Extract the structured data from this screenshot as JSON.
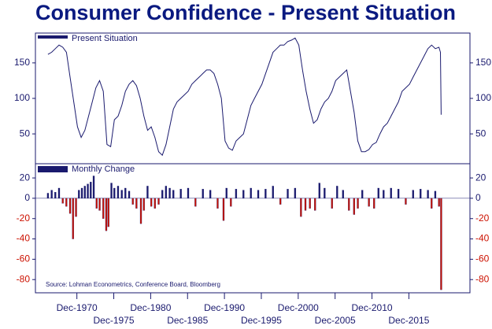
{
  "chart_data": [
    {
      "type": "line",
      "title": "Consumer Confidence - Present Situation",
      "series": [
        {
          "name": "Present Situation",
          "color": "#1a1a6e",
          "x": [
            1967.0,
            1967.5,
            1968.0,
            1968.5,
            1969.0,
            1969.5,
            1970.0,
            1970.5,
            1971.0,
            1971.5,
            1972.0,
            1972.5,
            1973.0,
            1973.5,
            1974.0,
            1974.5,
            1975.0,
            1975.5,
            1976.0,
            1976.5,
            1977.0,
            1977.5,
            1978.0,
            1978.5,
            1979.0,
            1979.5,
            1980.0,
            1980.5,
            1981.0,
            1981.5,
            1982.0,
            1982.5,
            1983.0,
            1983.5,
            1984.0,
            1984.5,
            1985.0,
            1985.5,
            1986.0,
            1986.5,
            1987.0,
            1987.5,
            1988.0,
            1988.5,
            1989.0,
            1989.5,
            1990.0,
            1990.5,
            1991.0,
            1991.5,
            1992.0,
            1992.5,
            1993.0,
            1993.5,
            1994.0,
            1994.5,
            1995.0,
            1995.5,
            1996.0,
            1996.5,
            1997.0,
            1997.5,
            1998.0,
            1998.5,
            1999.0,
            1999.5,
            2000.0,
            2000.5,
            2001.0,
            2001.5,
            2002.0,
            2002.5,
            2003.0,
            2003.5,
            2004.0,
            2004.5,
            2005.0,
            2005.5,
            2006.0,
            2006.5,
            2007.0,
            2007.5,
            2008.0,
            2008.5,
            2009.0,
            2009.5,
            2010.0,
            2010.5,
            2011.0,
            2011.5,
            2012.0,
            2012.5,
            2013.0,
            2013.5,
            2014.0,
            2014.5,
            2015.0,
            2015.5,
            2016.0,
            2016.5,
            2017.0,
            2017.5,
            2018.0,
            2018.5,
            2019.0,
            2019.5,
            2020.0,
            2020.2,
            2020.3
          ],
          "values": [
            162,
            165,
            170,
            175,
            172,
            165,
            130,
            95,
            60,
            45,
            55,
            75,
            95,
            115,
            125,
            110,
            35,
            32,
            70,
            75,
            90,
            110,
            120,
            125,
            118,
            100,
            75,
            55,
            60,
            45,
            25,
            20,
            35,
            60,
            85,
            95,
            100,
            105,
            110,
            120,
            125,
            130,
            135,
            140,
            140,
            135,
            120,
            100,
            40,
            30,
            27,
            40,
            45,
            50,
            70,
            90,
            100,
            110,
            120,
            135,
            150,
            165,
            170,
            175,
            175,
            180,
            182,
            185,
            175,
            140,
            110,
            85,
            65,
            70,
            85,
            95,
            100,
            110,
            125,
            130,
            135,
            140,
            110,
            80,
            40,
            25,
            25,
            28,
            35,
            38,
            50,
            60,
            65,
            75,
            85,
            95,
            110,
            115,
            120,
            130,
            140,
            150,
            160,
            170,
            175,
            170,
            172,
            165,
            77
          ]
        }
      ],
      "ylim": [
        8,
        192
      ],
      "yticks": [
        50,
        100,
        150
      ],
      "xlim": [
        1965.3,
        2024.2
      ]
    },
    {
      "type": "bar",
      "note": "Source: Lohman Econometrics, Conference Board, Bloomberg",
      "series": [
        {
          "name": "Monthly Change",
          "color": "#1a1a6e",
          "negative_color": "#cc1100",
          "x": [
            1967.0,
            1967.5,
            1968.0,
            1968.5,
            1969.0,
            1969.5,
            1970.0,
            1970.4,
            1970.8,
            1971.2,
            1971.6,
            1972.0,
            1972.4,
            1972.8,
            1973.2,
            1973.6,
            1974.0,
            1974.5,
            1974.9,
            1975.2,
            1975.6,
            1976.0,
            1976.5,
            1977.0,
            1977.5,
            1978.0,
            1978.5,
            1979.0,
            1979.6,
            1980.0,
            1980.5,
            1981.0,
            1981.5,
            1982.0,
            1982.5,
            1983.0,
            1983.5,
            1984.0,
            1985.0,
            1986.0,
            1987.0,
            1988.0,
            1989.0,
            1990.0,
            1990.8,
            1991.2,
            1991.8,
            1992.5,
            1993.5,
            1994.5,
            1995.5,
            1996.5,
            1997.5,
            1998.5,
            1999.5,
            2000.5,
            2001.3,
            2001.9,
            2002.5,
            2003.2,
            2003.8,
            2004.5,
            2005.5,
            2006.2,
            2007.0,
            2007.8,
            2008.5,
            2009.0,
            2009.6,
            2010.5,
            2011.2,
            2011.8,
            2012.5,
            2013.5,
            2014.5,
            2015.5,
            2016.5,
            2017.5,
            2018.5,
            2019.0,
            2019.5,
            2020.0,
            2020.3
          ],
          "values": [
            5,
            8,
            6,
            10,
            -5,
            -8,
            -15,
            -40,
            -18,
            8,
            10,
            12,
            14,
            16,
            22,
            -10,
            -12,
            -20,
            -32,
            -28,
            15,
            10,
            12,
            8,
            10,
            7,
            -6,
            -10,
            -25,
            -12,
            12,
            -8,
            -10,
            -6,
            8,
            12,
            10,
            8,
            9,
            10,
            -8,
            9,
            8,
            -10,
            -22,
            10,
            -8,
            9,
            8,
            10,
            8,
            9,
            12,
            -6,
            9,
            10,
            -18,
            -12,
            -10,
            -12,
            15,
            10,
            -10,
            12,
            8,
            -12,
            -16,
            -10,
            8,
            -8,
            -10,
            10,
            8,
            10,
            9,
            -6,
            8,
            9,
            8,
            -10,
            7,
            -8,
            -90
          ]
        }
      ],
      "ylim": [
        -93,
        34
      ],
      "yticks": [
        -80,
        -60,
        -40,
        -20,
        0,
        20
      ],
      "xlim": [
        1965.3,
        2024.2
      ],
      "xticks": [
        {
          "value": 1970.92,
          "label": "Dec-1970"
        },
        {
          "value": 1975.92,
          "label": "Dec-1975"
        },
        {
          "value": 1980.92,
          "label": "Dec-1980"
        },
        {
          "value": 1985.92,
          "label": "Dec-1985"
        },
        {
          "value": 1990.92,
          "label": "Dec-1990"
        },
        {
          "value": 1995.92,
          "label": "Dec-1995"
        },
        {
          "value": 2000.92,
          "label": "Dec-2000"
        },
        {
          "value": 2005.92,
          "label": "Dec-2005"
        },
        {
          "value": 2010.92,
          "label": "Dec-2010"
        },
        {
          "value": 2015.92,
          "label": "Dec-2015"
        }
      ]
    }
  ]
}
